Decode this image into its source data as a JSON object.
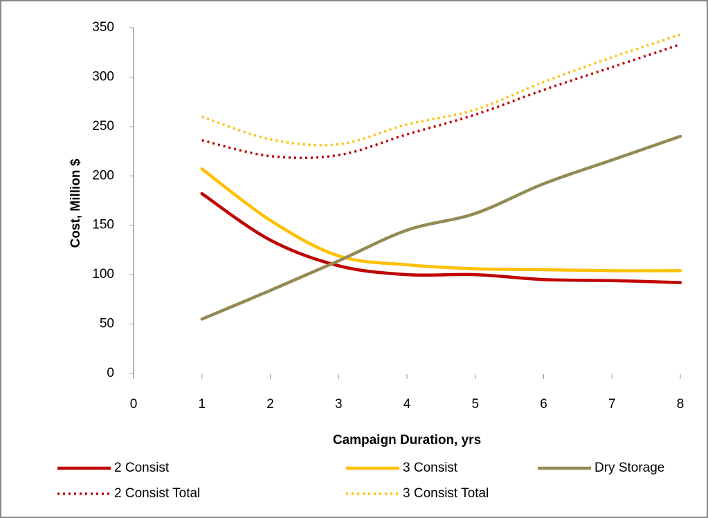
{
  "chart_data": {
    "type": "line",
    "x_label": "Campaign Duration, yrs",
    "y_label": "Cost, Million $",
    "x": [
      1,
      2,
      3,
      4,
      5,
      6,
      7,
      8
    ],
    "series": [
      {
        "name": "2 Consist",
        "color": "#c00000",
        "line_style": "solid",
        "values": [
          182,
          135,
          109,
          100,
          100,
          95,
          94,
          92
        ]
      },
      {
        "name": "3 Consist",
        "color": "#ffc000",
        "line_style": "solid",
        "values": [
          207,
          155,
          119,
          110,
          106,
          105,
          104,
          104
        ]
      },
      {
        "name": "Dry Storage",
        "color": "#948a54",
        "line_style": "solid",
        "values": [
          55,
          84,
          114,
          145,
          162,
          192,
          216,
          240
        ]
      },
      {
        "name": "2 Consist Total",
        "color": "#c00000",
        "line_style": "dotted",
        "values": [
          236,
          220,
          221,
          242,
          262,
          287,
          310,
          333
        ]
      },
      {
        "name": "3 Consist Total",
        "color": "#ffc000",
        "line_style": "dotted",
        "values": [
          260,
          237,
          232,
          252,
          267,
          295,
          320,
          343
        ]
      }
    ],
    "xlim": [
      0,
      8
    ],
    "xticks": [
      0,
      1,
      2,
      3,
      4,
      5,
      6,
      7,
      8
    ],
    "ylim": [
      0,
      350
    ],
    "yticks": [
      0,
      50,
      100,
      150,
      200,
      250,
      300,
      350
    ],
    "grid": false,
    "legend": "bottom"
  }
}
